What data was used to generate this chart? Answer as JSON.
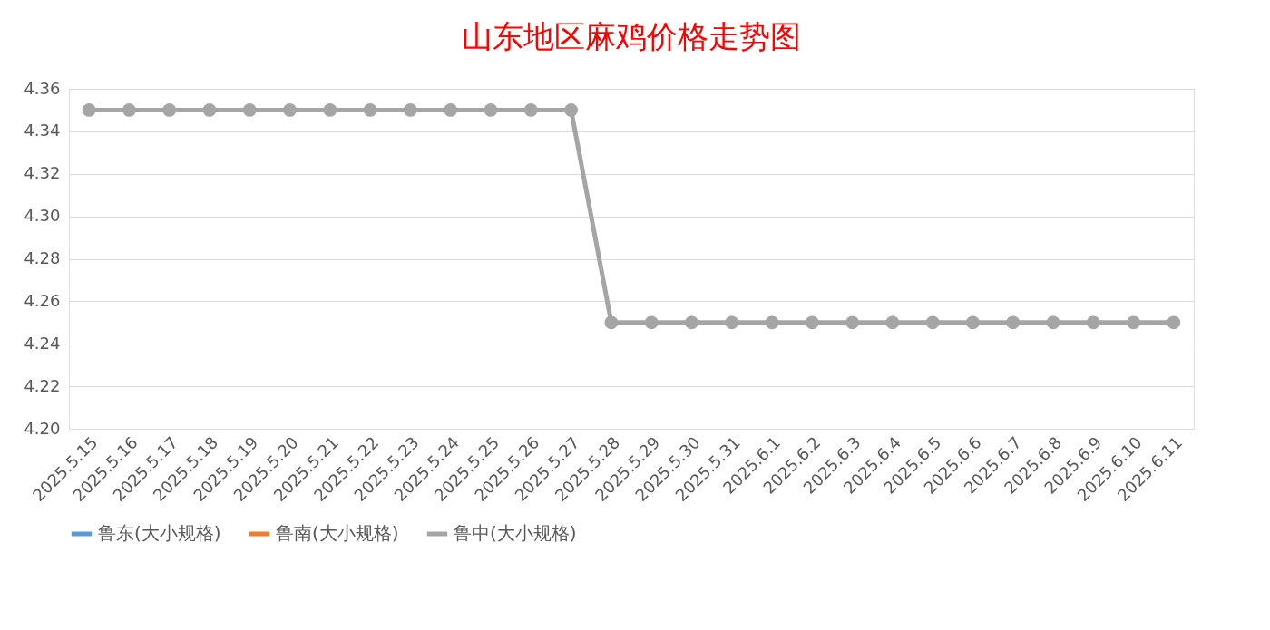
{
  "chart_data": {
    "type": "line",
    "title": "山东地区麻鸡价格走势图",
    "categories": [
      "2025.5.15",
      "2025.5.16",
      "2025.5.17",
      "2025.5.18",
      "2025.5.19",
      "2025.5.20",
      "2025.5.21",
      "2025.5.22",
      "2025.5.23",
      "2025.5.24",
      "2025.5.25",
      "2025.5.26",
      "2025.5.27",
      "2025.5.28",
      "2025.5.29",
      "2025.5.30",
      "2025.5.31",
      "2025.6.1",
      "2025.6.2",
      "2025.6.3",
      "2025.6.4",
      "2025.6.5",
      "2025.6.6",
      "2025.6.7",
      "2025.6.8",
      "2025.6.9",
      "2025.6.10",
      "2025.6.11"
    ],
    "series": [
      {
        "name": "鲁东(大小规格)",
        "color": "#5b9bd5",
        "values": [
          null,
          null,
          null,
          null,
          null,
          null,
          null,
          null,
          null,
          null,
          null,
          null,
          null,
          null,
          null,
          null,
          null,
          null,
          null,
          null,
          null,
          null,
          null,
          null,
          null,
          null,
          null,
          null
        ]
      },
      {
        "name": "鲁南(大小规格)",
        "color": "#ed7d31",
        "values": [
          null,
          null,
          null,
          null,
          null,
          null,
          null,
          null,
          null,
          null,
          null,
          null,
          null,
          null,
          null,
          null,
          null,
          null,
          null,
          null,
          null,
          null,
          null,
          null,
          null,
          null,
          null,
          null
        ]
      },
      {
        "name": "鲁中(大小规格)",
        "color": "#a5a5a5",
        "values": [
          4.35,
          4.35,
          4.35,
          4.35,
          4.35,
          4.35,
          4.35,
          4.35,
          4.35,
          4.35,
          4.35,
          4.35,
          4.35,
          4.25,
          4.25,
          4.25,
          4.25,
          4.25,
          4.25,
          4.25,
          4.25,
          4.25,
          4.25,
          4.25,
          4.25,
          4.25,
          4.25,
          4.25
        ]
      }
    ],
    "ylim": [
      4.2,
      4.36
    ],
    "yticks": [
      {
        "value": 4.2,
        "label": "4.20"
      },
      4.22,
      4.24,
      4.26,
      4.28,
      {
        "value": 4.3,
        "label": "4.30"
      },
      4.32,
      4.34,
      4.36
    ],
    "grid": "y",
    "legend": "bottom",
    "marker": "circle",
    "line_style": "solid"
  }
}
